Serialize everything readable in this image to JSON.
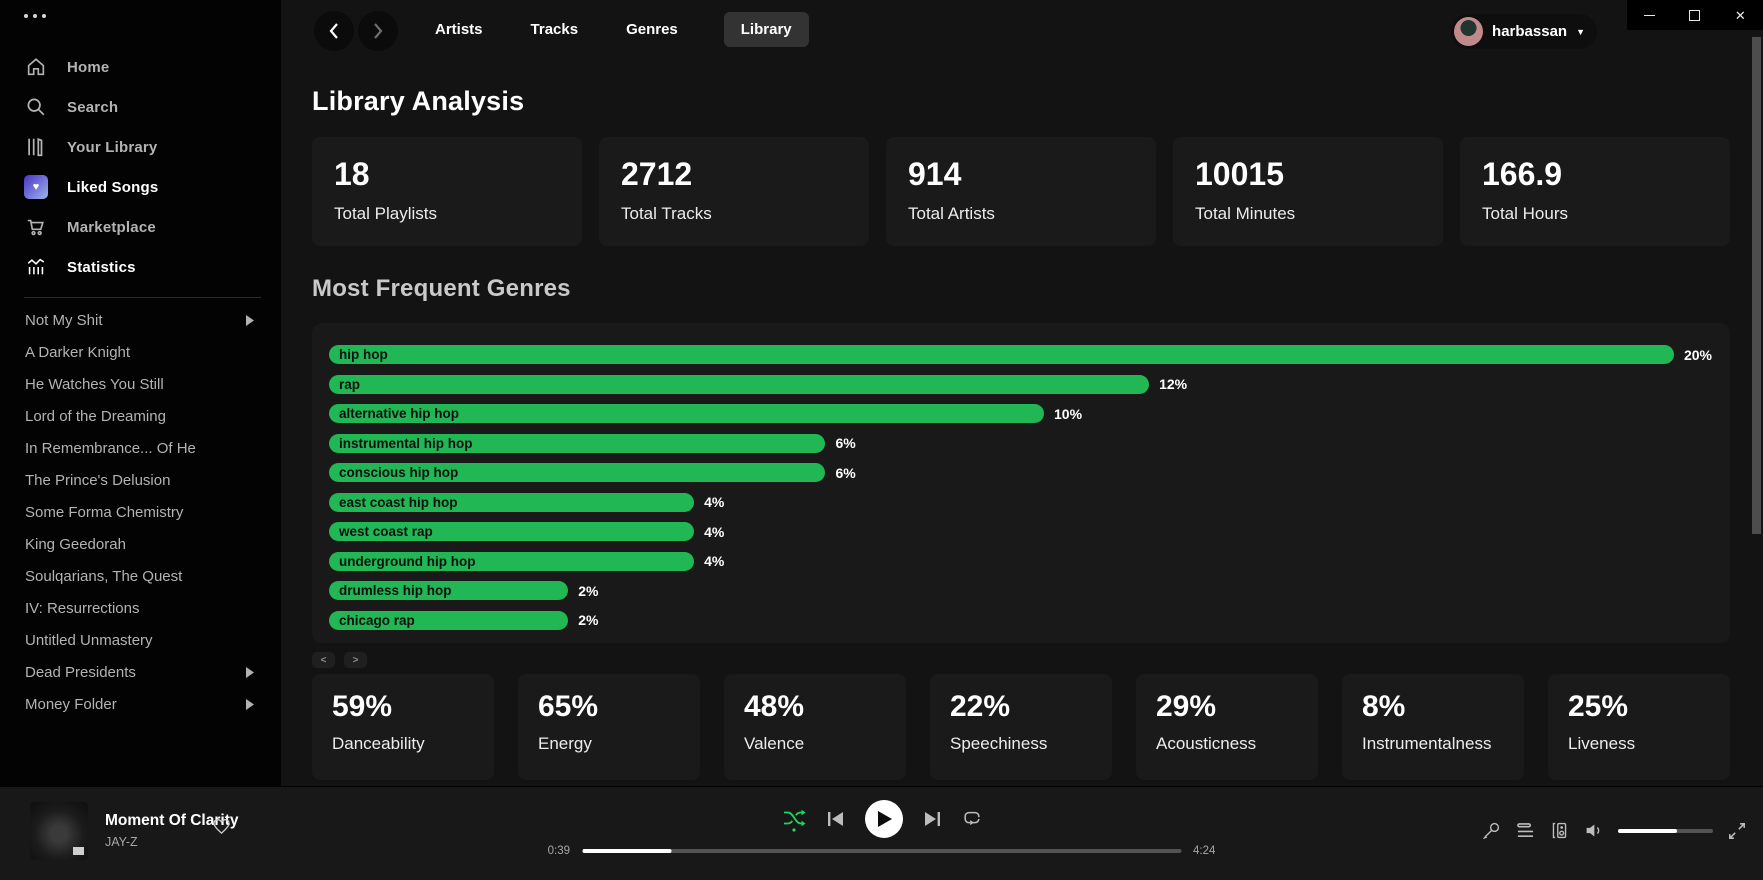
{
  "window": {
    "controls": [
      "minimize",
      "maximize",
      "close"
    ]
  },
  "glyphs": {
    "heart": "♥",
    "caret": "▼"
  },
  "sidebar": {
    "menu": [
      {
        "label": "Home",
        "icon": "home-icon"
      },
      {
        "label": "Search",
        "icon": "search-icon"
      },
      {
        "label": "Your Library",
        "icon": "library-icon"
      },
      {
        "label": "Liked Songs",
        "icon": "liked-songs-heart-icon"
      },
      {
        "label": "Marketplace",
        "icon": "cart-icon"
      },
      {
        "label": "Statistics",
        "icon": "stats-icon",
        "active": true
      }
    ],
    "playlists": [
      {
        "label": "Not My Shit",
        "folder": true
      },
      {
        "label": "A Darker Knight"
      },
      {
        "label": "He Watches You Still"
      },
      {
        "label": "Lord of the Dreaming"
      },
      {
        "label": "In Remembrance... Of He"
      },
      {
        "label": "The Prince's Delusion"
      },
      {
        "label": "Some Forma Chemistry"
      },
      {
        "label": "King Geedorah"
      },
      {
        "label": "Soulqarians, The Quest"
      },
      {
        "label": "IV: Resurrections"
      },
      {
        "label": "Untitled Unmastery"
      },
      {
        "label": "Dead Presidents",
        "folder": true
      },
      {
        "label": "Money Folder",
        "folder": true
      }
    ]
  },
  "topbar": {
    "tabs": [
      {
        "label": "Artists"
      },
      {
        "label": "Tracks"
      },
      {
        "label": "Genres"
      },
      {
        "label": "Library",
        "active": true
      }
    ],
    "user": {
      "name": "harbassan"
    }
  },
  "main": {
    "title": "Library Analysis",
    "stats": [
      {
        "value": "18",
        "label": "Total Playlists"
      },
      {
        "value": "2712",
        "label": "Total Tracks"
      },
      {
        "value": "914",
        "label": "Total Artists"
      },
      {
        "value": "10015",
        "label": "Total Minutes"
      },
      {
        "value": "166.9",
        "label": "Total Hours"
      }
    ],
    "genres_title": "Most Frequent Genres",
    "pager": {
      "prev": "<",
      "next": ">"
    },
    "features": [
      {
        "value": "59%",
        "label": "Danceability"
      },
      {
        "value": "65%",
        "label": "Energy"
      },
      {
        "value": "48%",
        "label": "Valence"
      },
      {
        "value": "22%",
        "label": "Speechiness"
      },
      {
        "value": "29%",
        "label": "Acousticness"
      },
      {
        "value": "8%",
        "label": "Instrumentalness"
      },
      {
        "value": "25%",
        "label": "Liveness"
      }
    ]
  },
  "chart_data": {
    "type": "bar",
    "orientation": "horizontal",
    "title": "Most Frequent Genres",
    "categories": [
      "hip hop",
      "rap",
      "alternative hip hop",
      "instrumental hip hop",
      "conscious hip hop",
      "east coast hip hop",
      "west coast rap",
      "underground hip hop",
      "drumless hip hop",
      "chicago rap"
    ],
    "values": [
      20,
      12,
      10,
      6,
      6,
      4,
      4,
      4,
      2,
      2
    ],
    "labels": [
      "20%",
      "12%",
      "10%",
      "6%",
      "6%",
      "4%",
      "4%",
      "4%",
      "2%",
      "2%"
    ],
    "unit": "%",
    "xlim": [
      0,
      20
    ],
    "bar_color": "#21b755",
    "width_pct": [
      97.5,
      59.3,
      51.7,
      35.9,
      35.9,
      26.4,
      26.4,
      26.4,
      17.3,
      17.3
    ]
  },
  "player": {
    "track": {
      "title": "Moment Of Clarity",
      "artist": "JAY-Z"
    },
    "progress": {
      "elapsed": "0:39",
      "total": "4:24",
      "percent": 15
    },
    "volume_percent": 62,
    "shuffle_active": true
  },
  "colors": {
    "accent_green": "#21b755",
    "shuffle_green": "#1ed760"
  }
}
